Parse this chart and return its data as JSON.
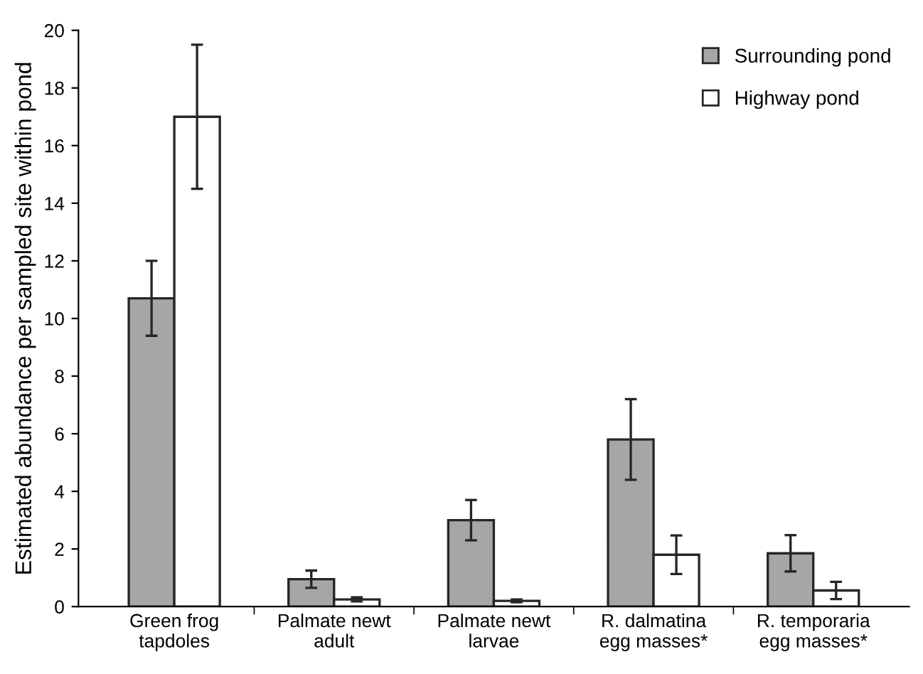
{
  "chart_data": {
    "type": "bar",
    "ylabel": "Estimated abundance per sampled site within pond",
    "categories": [
      "Green frog\ntapdoles",
      "Palmate newt\nadult",
      "Palmate newt\nlarvae",
      "R. dalmatina\negg masses*",
      "R. temporaria\negg masses*"
    ],
    "series": [
      {
        "name": "Surrounding pond",
        "color": "#a6a6a8",
        "values": [
          10.7,
          0.95,
          3.0,
          5.8,
          1.85
        ],
        "errors": [
          1.3,
          0.3,
          0.7,
          1.4,
          0.63
        ]
      },
      {
        "name": "Highway pond",
        "color": "#ffffff",
        "values": [
          17.0,
          0.25,
          0.2,
          1.8,
          0.56
        ],
        "errors": [
          2.5,
          0.07,
          0.05,
          0.67,
          0.3
        ]
      }
    ],
    "ylim": [
      0,
      20
    ],
    "yticks": [
      0,
      2,
      4,
      6,
      8,
      10,
      12,
      14,
      16,
      18,
      20
    ],
    "grid": false,
    "legend": "top right"
  }
}
